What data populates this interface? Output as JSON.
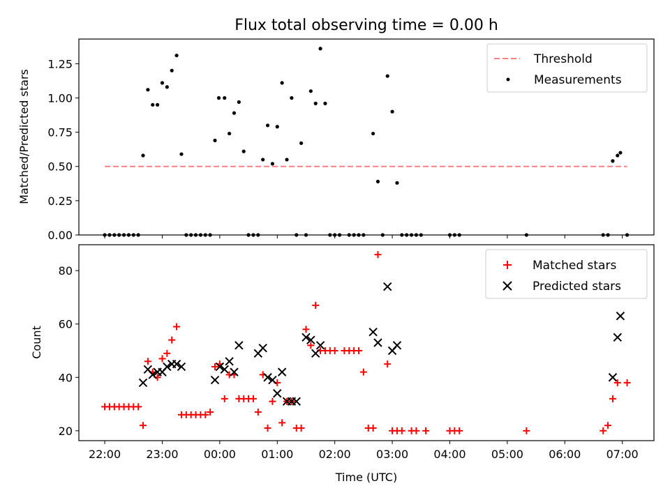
{
  "figure": {
    "title": "Flux total observing time = 0.00 h",
    "xlabel": "Time (UTC)"
  },
  "chart_data": [
    {
      "type": "scatter",
      "ylabel": "Matched/Predicted stars",
      "xlim": [
        "21:33",
        "07:33"
      ],
      "ylim": [
        0,
        1.43
      ],
      "yticks": [
        "0.00",
        "0.25",
        "0.50",
        "0.75",
        "1.00",
        "1.25"
      ],
      "grid": false,
      "legend": "top-right",
      "threshold": {
        "name": "Threshold",
        "y": 0.5,
        "x_range": [
          "22:00",
          "07:05"
        ],
        "color": "#ff7f7f"
      },
      "series": [
        {
          "name": "Measurements",
          "color": "#000000",
          "points": [
            [
              "22:00",
              0
            ],
            [
              "22:05",
              0
            ],
            [
              "22:10",
              0
            ],
            [
              "22:15",
              0
            ],
            [
              "22:20",
              0
            ],
            [
              "22:25",
              0
            ],
            [
              "22:30",
              0
            ],
            [
              "22:35",
              0
            ],
            [
              "22:40",
              0.58
            ],
            [
              "22:45",
              1.06
            ],
            [
              "22:50",
              0.95
            ],
            [
              "22:55",
              0.95
            ],
            [
              "23:00",
              1.11
            ],
            [
              "23:05",
              1.08
            ],
            [
              "23:10",
              1.2
            ],
            [
              "23:15",
              1.31
            ],
            [
              "23:20",
              0.59
            ],
            [
              "23:25",
              0
            ],
            [
              "23:30",
              0
            ],
            [
              "23:35",
              0
            ],
            [
              "23:40",
              0
            ],
            [
              "23:45",
              0
            ],
            [
              "23:50",
              0
            ],
            [
              "23:55",
              0.69
            ],
            [
              "23:59",
              1.0
            ],
            [
              "00:05",
              1.0
            ],
            [
              "00:10",
              0.74
            ],
            [
              "00:15",
              0.89
            ],
            [
              "00:20",
              0.97
            ],
            [
              "00:25",
              0.61
            ],
            [
              "00:30",
              0
            ],
            [
              "00:35",
              0
            ],
            [
              "00:40",
              0
            ],
            [
              "00:45",
              0.55
            ],
            [
              "00:50",
              0.8
            ],
            [
              "00:55",
              0.52
            ],
            [
              "01:00",
              0.79
            ],
            [
              "01:05",
              1.11
            ],
            [
              "01:10",
              0.55
            ],
            [
              "01:15",
              1.0
            ],
            [
              "01:20",
              0
            ],
            [
              "01:25",
              0.67
            ],
            [
              "01:30",
              0
            ],
            [
              "01:35",
              1.05
            ],
            [
              "01:40",
              0.96
            ],
            [
              "01:45",
              1.36
            ],
            [
              "01:50",
              0.96
            ],
            [
              "01:55",
              0
            ],
            [
              "02:00",
              0
            ],
            [
              "02:05",
              0
            ],
            [
              "02:15",
              0
            ],
            [
              "02:20",
              0
            ],
            [
              "02:25",
              0
            ],
            [
              "02:30",
              0
            ],
            [
              "02:40",
              0.74
            ],
            [
              "02:45",
              0.39
            ],
            [
              "02:50",
              0
            ],
            [
              "02:55",
              1.16
            ],
            [
              "03:00",
              0.9
            ],
            [
              "03:05",
              0.38
            ],
            [
              "03:10",
              0
            ],
            [
              "03:15",
              0
            ],
            [
              "03:20",
              0
            ],
            [
              "03:25",
              0
            ],
            [
              "03:30",
              0
            ],
            [
              "04:00",
              0
            ],
            [
              "04:05",
              0
            ],
            [
              "04:10",
              0
            ],
            [
              "05:20",
              0
            ],
            [
              "06:40",
              0
            ],
            [
              "06:45",
              0
            ],
            [
              "06:50",
              0.54
            ],
            [
              "06:55",
              0.58
            ],
            [
              "06:58",
              0.6
            ],
            [
              "07:05",
              0
            ]
          ]
        }
      ]
    },
    {
      "type": "scatter",
      "ylabel": "Count",
      "xticks": [
        "22:00",
        "23:00",
        "00:00",
        "01:00",
        "02:00",
        "03:00",
        "04:00",
        "05:00",
        "06:00",
        "07:00"
      ],
      "xlim": [
        "21:33",
        "07:33"
      ],
      "ylim": [
        16.3,
        89.7
      ],
      "yticks": [
        "20",
        "40",
        "60",
        "80"
      ],
      "grid": false,
      "legend": "top-right",
      "series": [
        {
          "name": "Matched stars",
          "marker": "plus",
          "color": "#ff0000",
          "points": [
            [
              "22:00",
              29
            ],
            [
              "22:05",
              29
            ],
            [
              "22:10",
              29
            ],
            [
              "22:15",
              29
            ],
            [
              "22:20",
              29
            ],
            [
              "22:25",
              29
            ],
            [
              "22:30",
              29
            ],
            [
              "22:35",
              29
            ],
            [
              "22:40",
              22
            ],
            [
              "22:45",
              46
            ],
            [
              "22:50",
              42
            ],
            [
              "22:55",
              40
            ],
            [
              "23:00",
              47
            ],
            [
              "23:05",
              49
            ],
            [
              "23:10",
              54
            ],
            [
              "23:15",
              59
            ],
            [
              "23:20",
              26
            ],
            [
              "23:25",
              26
            ],
            [
              "23:30",
              26
            ],
            [
              "23:35",
              26
            ],
            [
              "23:40",
              26
            ],
            [
              "23:45",
              26
            ],
            [
              "23:50",
              27
            ],
            [
              "23:55",
              44
            ],
            [
              "00:00",
              45
            ],
            [
              "00:05",
              32
            ],
            [
              "00:10",
              41
            ],
            [
              "00:15",
              41
            ],
            [
              "00:20",
              32
            ],
            [
              "00:25",
              32
            ],
            [
              "00:30",
              32
            ],
            [
              "00:35",
              32
            ],
            [
              "00:40",
              27
            ],
            [
              "00:45",
              41
            ],
            [
              "00:50",
              21
            ],
            [
              "00:55",
              31
            ],
            [
              "01:00",
              38
            ],
            [
              "01:05",
              23
            ],
            [
              "01:10",
              31
            ],
            [
              "01:15",
              31
            ],
            [
              "01:20",
              21
            ],
            [
              "01:25",
              21
            ],
            [
              "01:30",
              58
            ],
            [
              "01:35",
              52
            ],
            [
              "01:40",
              67
            ],
            [
              "01:45",
              50
            ],
            [
              "01:50",
              50
            ],
            [
              "01:55",
              50
            ],
            [
              "02:00",
              50
            ],
            [
              "02:10",
              50
            ],
            [
              "02:15",
              50
            ],
            [
              "02:20",
              50
            ],
            [
              "02:25",
              50
            ],
            [
              "02:30",
              42
            ],
            [
              "02:35",
              21
            ],
            [
              "02:40",
              21
            ],
            [
              "02:45",
              86
            ],
            [
              "02:55",
              45
            ],
            [
              "03:00",
              20
            ],
            [
              "03:05",
              20
            ],
            [
              "03:10",
              20
            ],
            [
              "03:20",
              20
            ],
            [
              "03:25",
              20
            ],
            [
              "03:35",
              20
            ],
            [
              "04:00",
              20
            ],
            [
              "04:05",
              20
            ],
            [
              "04:10",
              20
            ],
            [
              "05:20",
              20
            ],
            [
              "06:40",
              20
            ],
            [
              "06:45",
              22
            ],
            [
              "06:50",
              32
            ],
            [
              "06:55",
              38
            ],
            [
              "07:05",
              38
            ]
          ]
        },
        {
          "name": "Predicted stars",
          "marker": "x",
          "color": "#000000",
          "points": [
            [
              "22:40",
              38
            ],
            [
              "22:45",
              43
            ],
            [
              "22:50",
              41
            ],
            [
              "22:55",
              42
            ],
            [
              "23:00",
              42
            ],
            [
              "23:05",
              44
            ],
            [
              "23:10",
              45
            ],
            [
              "23:15",
              45
            ],
            [
              "23:20",
              44
            ],
            [
              "23:55",
              39
            ],
            [
              "00:00",
              44
            ],
            [
              "00:05",
              43
            ],
            [
              "00:10",
              46
            ],
            [
              "00:15",
              42
            ],
            [
              "00:20",
              52
            ],
            [
              "00:40",
              49
            ],
            [
              "00:45",
              51
            ],
            [
              "00:50",
              40
            ],
            [
              "00:55",
              39
            ],
            [
              "01:00",
              34
            ],
            [
              "01:05",
              42
            ],
            [
              "01:10",
              31
            ],
            [
              "01:15",
              31
            ],
            [
              "01:20",
              31
            ],
            [
              "01:30",
              55
            ],
            [
              "01:35",
              54
            ],
            [
              "01:40",
              49
            ],
            [
              "01:45",
              52
            ],
            [
              "02:40",
              57
            ],
            [
              "02:45",
              53
            ],
            [
              "02:55",
              74
            ],
            [
              "03:00",
              50
            ],
            [
              "03:05",
              52
            ],
            [
              "06:50",
              40
            ],
            [
              "06:55",
              55
            ],
            [
              "06:58",
              63
            ]
          ]
        }
      ]
    }
  ]
}
